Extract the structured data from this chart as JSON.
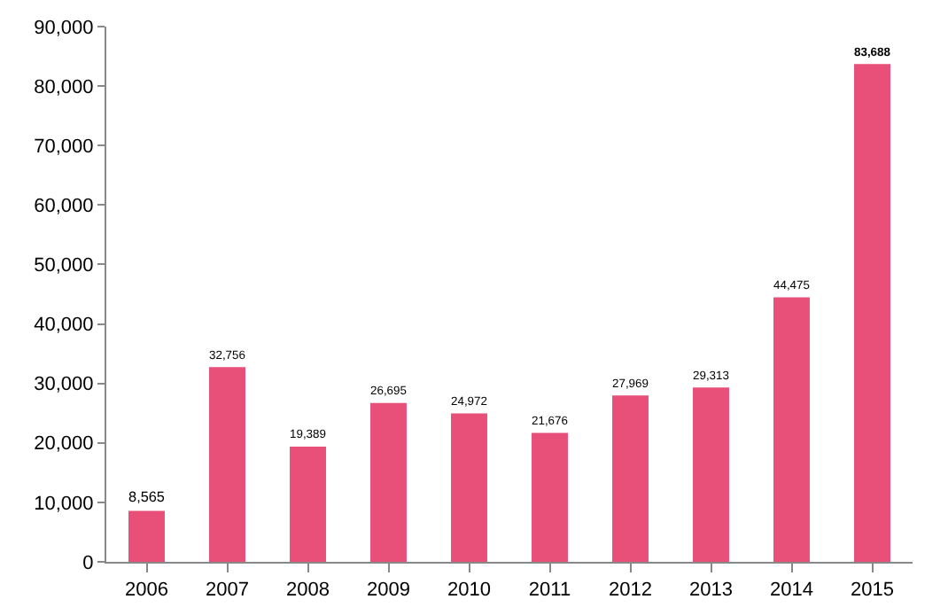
{
  "chart_data": {
    "type": "bar",
    "categories": [
      "2006",
      "2007",
      "2008",
      "2009",
      "2010",
      "2011",
      "2012",
      "2013",
      "2014",
      "2015"
    ],
    "values": [
      8565,
      32756,
      19389,
      26695,
      24972,
      21676,
      27969,
      29313,
      44475,
      83688
    ],
    "value_labels": [
      "8,565",
      "32,756",
      "19,389",
      "26,695",
      "24,972",
      "21,676",
      "27,969",
      "29,313",
      "44,475",
      "83,688"
    ],
    "color": "#e8507a",
    "grid": false,
    "legend": false,
    "ylim": [
      0,
      90000
    ],
    "yticks": [
      0,
      {
        "value": 10000,
        "label": "10,000"
      },
      {
        "value": 20000,
        "label": "20,000"
      },
      {
        "value": 30000,
        "label": "30,000"
      },
      {
        "value": 40000,
        "label": "40,000"
      },
      {
        "value": 50000,
        "label": "50,000"
      },
      {
        "value": 60000,
        "label": "60,000"
      },
      {
        "value": 70000,
        "label": "70,000"
      },
      {
        "value": 80000,
        "label": "80,000"
      },
      {
        "value": 90000,
        "label": "90,000"
      }
    ]
  }
}
